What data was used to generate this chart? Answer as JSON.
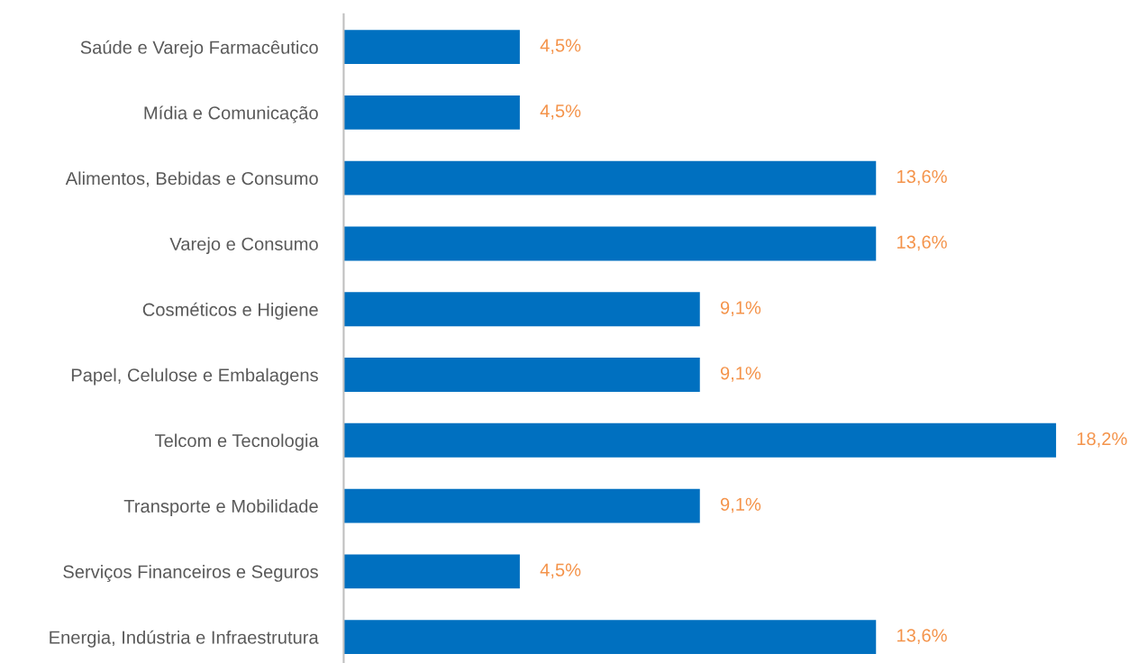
{
  "chart_data": {
    "type": "bar",
    "orientation": "horizontal",
    "categories": [
      "Saúde e Varejo Farmacêutico",
      "Mídia e Comunicação",
      "Alimentos, Bebidas e Consumo",
      "Varejo e Consumo",
      "Cosméticos e Higiene",
      "Papel, Celulose e Embalagens",
      "Telcom e Tecnologia",
      "Transporte e Mobilidade",
      "Serviços Financeiros e Seguros",
      "Energia, Indústria e Infraestrutura"
    ],
    "values": [
      4.5,
      4.5,
      13.6,
      13.6,
      9.1,
      9.1,
      18.2,
      9.1,
      4.5,
      13.6
    ],
    "value_labels": [
      "4,5%",
      "4,5%",
      "13,6%",
      "13,6%",
      "9,1%",
      "9,1%",
      "18,2%",
      "9,1%",
      "4,5%",
      "13,6%"
    ],
    "color": "#0070c0",
    "grid": false
  }
}
